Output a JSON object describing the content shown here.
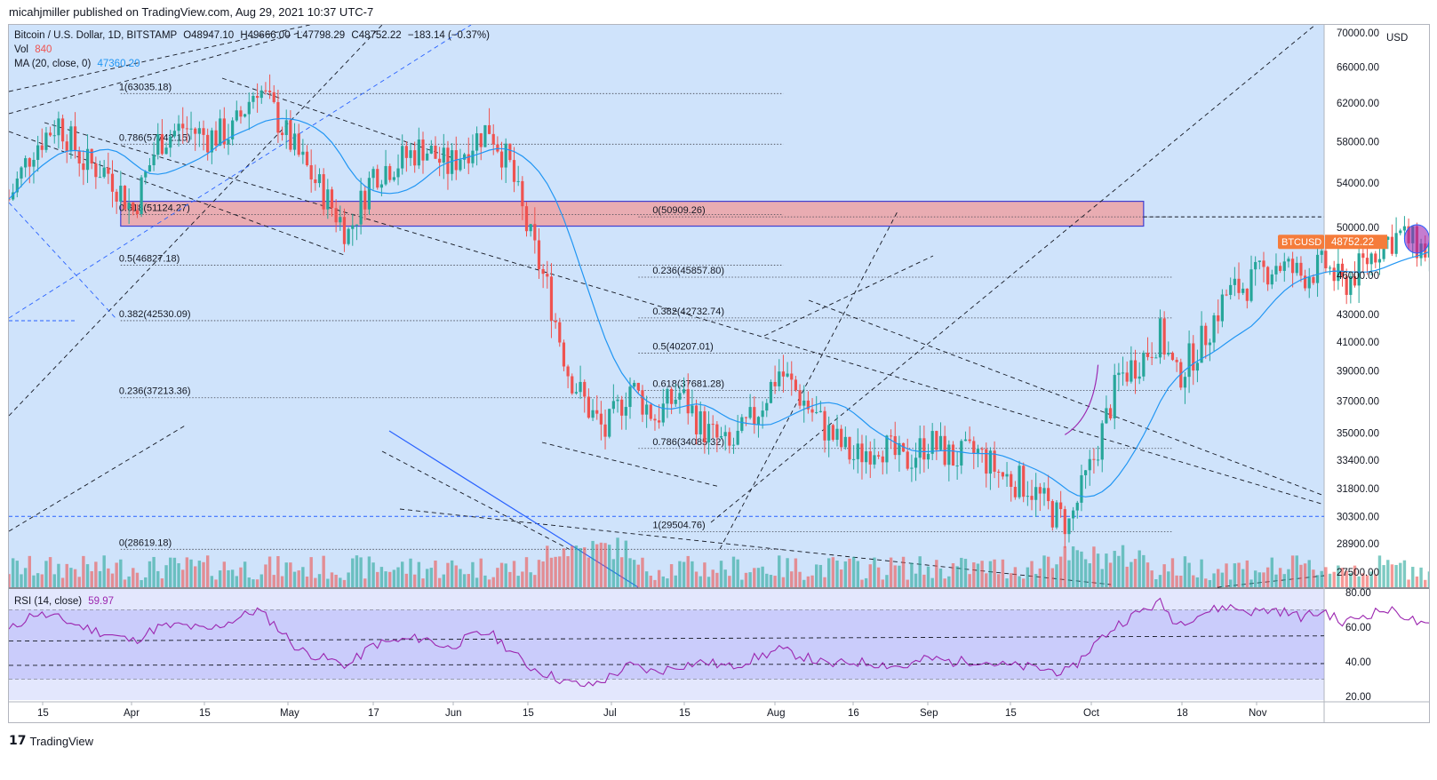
{
  "header": {
    "published": "micahjmiller published on TradingView.com, Aug 29, 2021 10:37 UTC-7"
  },
  "legend": {
    "symbol": "Bitcoin / U.S. Dollar, 1D, BITSTAMP",
    "open": "O48947.10",
    "high": "H49666.00",
    "low": "L47798.29",
    "close": "C48752.22",
    "change": "−183.14 (−0.37%)",
    "vol_label": "Vol",
    "vol_value": "840",
    "ma_label": "MA (20, close, 0)",
    "ma_value": "47360.20",
    "rsi_label": "RSI (14, close)",
    "rsi_value": "59.97"
  },
  "price_badge": {
    "symbol": "BTCUSD",
    "value": "48752.22"
  },
  "colors": {
    "up": "#26a69a",
    "down": "#ef5350",
    "ma": "#2196f3",
    "rsi": "#9c27b0",
    "background": "#cfe3fb",
    "resistance_zone": "#f29a9a"
  },
  "footer": {
    "brand": "TradingView",
    "logo_icon": "tradingview-logo-icon"
  },
  "chart_data": [
    {
      "type": "candlestick",
      "title": "Bitcoin / U.S. Dollar, 1D, BITSTAMP",
      "x_tick_labels": [
        "15",
        "Apr",
        "15",
        "May",
        "17",
        "Jun",
        "15",
        "Jul",
        "15",
        "Aug",
        "16",
        "Sep",
        "15",
        "Oct",
        "18",
        "Nov"
      ],
      "y_tick_labels": [
        "70000.00",
        "66000.00",
        "62000.00",
        "58000.00",
        "54000.00",
        "50000.00",
        "46000.00",
        "43000.00",
        "41000.00",
        "39000.00",
        "37000.00",
        "35000.00",
        "33400.00",
        "31800.00",
        "30300.00",
        "28900.00",
        "27500.00"
      ],
      "y_unit": "USD",
      "y_scale": "log",
      "ylim": [
        26800,
        71000
      ],
      "series": [
        {
          "name": "BTCUSD",
          "close_path": [
            [
              0,
              52500
            ],
            [
              6,
              57500
            ],
            [
              12,
              60000
            ],
            [
              18,
              56000
            ],
            [
              24,
              55000
            ],
            [
              30,
              51500
            ],
            [
              36,
              58000
            ],
            [
              42,
              59500
            ],
            [
              48,
              58500
            ],
            [
              54,
              59000
            ],
            [
              60,
              64000
            ],
            [
              64,
              61000
            ],
            [
              70,
              56500
            ],
            [
              76,
              53000
            ],
            [
              82,
              49500
            ],
            [
              88,
              55000
            ],
            [
              94,
              56000
            ],
            [
              100,
              57500
            ],
            [
              106,
              55500
            ],
            [
              112,
              58000
            ],
            [
              116,
              59500
            ],
            [
              121,
              55500
            ],
            [
              125,
              50000
            ],
            [
              130,
              45000
            ],
            [
              135,
              39000
            ],
            [
              140,
              36500
            ],
            [
              144,
              35000
            ],
            [
              150,
              38000
            ],
            [
              156,
              36000
            ],
            [
              162,
              37500
            ],
            [
              168,
              35200
            ],
            [
              174,
              34000
            ],
            [
              180,
              36000
            ],
            [
              186,
              39000
            ],
            [
              192,
              37000
            ],
            [
              198,
              35000
            ],
            [
              204,
              33500
            ],
            [
              210,
              34500
            ],
            [
              216,
              33200
            ],
            [
              222,
              34500
            ],
            [
              228,
              33500
            ],
            [
              234,
              33800
            ],
            [
              240,
              32500
            ],
            [
              246,
              32000
            ],
            [
              252,
              30500
            ],
            [
              256,
              29900
            ],
            [
              262,
              33500
            ],
            [
              268,
              38500
            ],
            [
              274,
              40000
            ],
            [
              278,
              41500
            ],
            [
              282,
              38500
            ],
            [
              288,
              41000
            ],
            [
              294,
              44500
            ],
            [
              300,
              45500
            ],
            [
              306,
              47000
            ],
            [
              312,
              46000
            ],
            [
              318,
              46800
            ],
            [
              322,
              45200
            ],
            [
              326,
              46500
            ],
            [
              332,
              48800
            ],
            [
              336,
              49300
            ],
            [
              342,
              48000
            ],
            [
              346,
              48752
            ]
          ]
        },
        {
          "name": "MA (20, close, 0)",
          "value": 47360.2
        },
        {
          "name": "Vol",
          "value": 840
        }
      ],
      "fibonacci_left": [
        {
          "label": "1(63035.18)",
          "value": 63035.18
        },
        {
          "label": "0.786(57742.15)",
          "value": 57742.15
        },
        {
          "label": "0.618(51124.27)",
          "value": 51124.27
        },
        {
          "label": "0.5(46827.18)",
          "value": 46827.18
        },
        {
          "label": "0.382(42530.09)",
          "value": 42530.09
        },
        {
          "label": "0.236(37213.36)",
          "value": 37213.36
        },
        {
          "label": "0(28619.18)",
          "value": 28619.18
        }
      ],
      "fibonacci_right": [
        {
          "label": "0(50909.26)",
          "value": 50909.26
        },
        {
          "label": "0.236(45857.80)",
          "value": 45857.8
        },
        {
          "label": "0.382(42732.74)",
          "value": 42732.74
        },
        {
          "label": "0.5(40207.01)",
          "value": 40207.01
        },
        {
          "label": "0.618(37681.28)",
          "value": 37681.28
        },
        {
          "label": "0.786(34085.32)",
          "value": 34085.32
        },
        {
          "label": "1(29504.76)",
          "value": 29504.76
        }
      ],
      "resistance_zone": [
        50100,
        52300
      ],
      "horizontal_levels": [
        50909.26,
        42530.09,
        30300
      ],
      "projection_path": [
        [
          346,
          48752
        ],
        [
          350,
          42800
        ],
        [
          354,
          46500
        ],
        [
          362,
          37400
        ],
        [
          374,
          44000
        ]
      ]
    },
    {
      "type": "line",
      "title": "RSI (14, close)",
      "y_tick_labels": [
        "80.00",
        "60.00",
        "40.00",
        "20.00"
      ],
      "ylim": [
        18,
        82
      ],
      "band": [
        30,
        70
      ],
      "current": 59.97,
      "values_path": [
        [
          0,
          58
        ],
        [
          6,
          68
        ],
        [
          12,
          65
        ],
        [
          18,
          60
        ],
        [
          24,
          56
        ],
        [
          30,
          52
        ],
        [
          36,
          60
        ],
        [
          42,
          61
        ],
        [
          48,
          58
        ],
        [
          54,
          64
        ],
        [
          60,
          70
        ],
        [
          64,
          62
        ],
        [
          70,
          47
        ],
        [
          76,
          42
        ],
        [
          82,
          38
        ],
        [
          88,
          50
        ],
        [
          94,
          52
        ],
        [
          100,
          54
        ],
        [
          106,
          48
        ],
        [
          112,
          55
        ],
        [
          116,
          57
        ],
        [
          121,
          47
        ],
        [
          125,
          38
        ],
        [
          130,
          33
        ],
        [
          135,
          28
        ],
        [
          140,
          26
        ],
        [
          144,
          30
        ],
        [
          150,
          38
        ],
        [
          156,
          34
        ],
        [
          162,
          38
        ],
        [
          168,
          40
        ],
        [
          174,
          37
        ],
        [
          180,
          42
        ],
        [
          186,
          47
        ],
        [
          192,
          43
        ],
        [
          198,
          38
        ],
        [
          204,
          40
        ],
        [
          210,
          39
        ],
        [
          216,
          37
        ],
        [
          222,
          42
        ],
        [
          228,
          40
        ],
        [
          234,
          41
        ],
        [
          240,
          38
        ],
        [
          246,
          37
        ],
        [
          252,
          35
        ],
        [
          256,
          34
        ],
        [
          262,
          50
        ],
        [
          268,
          62
        ],
        [
          274,
          70
        ],
        [
          278,
          74
        ],
        [
          282,
          62
        ],
        [
          288,
          68
        ],
        [
          294,
          72
        ],
        [
          300,
          69
        ],
        [
          306,
          70
        ],
        [
          312,
          66
        ],
        [
          318,
          69
        ],
        [
          322,
          62
        ],
        [
          326,
          66
        ],
        [
          332,
          70
        ],
        [
          336,
          68
        ],
        [
          342,
          60
        ],
        [
          346,
          60
        ]
      ]
    }
  ]
}
